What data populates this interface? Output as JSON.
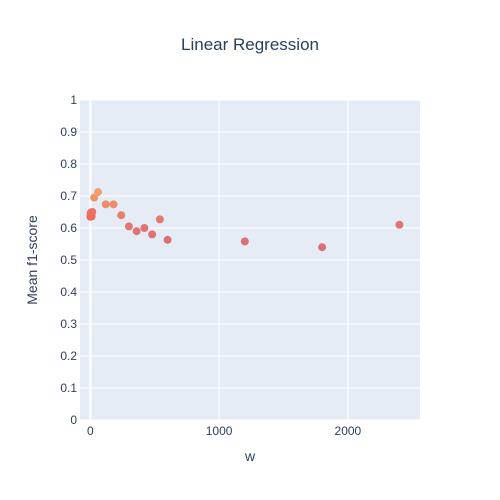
{
  "chart_data": {
    "type": "scatter",
    "title": "Linear Regression",
    "xlabel": "w",
    "ylabel": "Mean f1-score",
    "xlim": [
      -80,
      2560
    ],
    "ylim": [
      0,
      1
    ],
    "xticks": [
      0,
      1000,
      2000
    ],
    "xtick_labels": [
      "0",
      "1000",
      "2000"
    ],
    "yticks": [
      0,
      0.1,
      0.2,
      0.3,
      0.4,
      0.5,
      0.6,
      0.7,
      0.8,
      0.9,
      1
    ],
    "ytick_labels": [
      "0",
      "0.1",
      "0.2",
      "0.3",
      "0.4",
      "0.5",
      "0.6",
      "0.7",
      "0.8",
      "0.9",
      "1"
    ],
    "grid": true,
    "legend": "none",
    "plot_bg": "#e5ecf6",
    "grid_color": "#ffffff",
    "series": [
      {
        "points": [
          {
            "x": 1,
            "y": 0.635,
            "color": "#f06a5a"
          },
          {
            "x": 2,
            "y": 0.64,
            "color": "#f06a5a"
          },
          {
            "x": 3,
            "y": 0.645,
            "color": "#f06a5a"
          },
          {
            "x": 5,
            "y": 0.648,
            "color": "#f06a5a"
          },
          {
            "x": 8,
            "y": 0.643,
            "color": "#f06a5a"
          },
          {
            "x": 10,
            "y": 0.636,
            "color": "#f06a5a"
          },
          {
            "x": 15,
            "y": 0.65,
            "color": "#f07060"
          },
          {
            "x": 30,
            "y": 0.695,
            "color": "#f2946a"
          },
          {
            "x": 60,
            "y": 0.712,
            "color": "#f2a070"
          },
          {
            "x": 120,
            "y": 0.674,
            "color": "#ee8c6c"
          },
          {
            "x": 180,
            "y": 0.674,
            "color": "#ee8c6c"
          },
          {
            "x": 240,
            "y": 0.64,
            "color": "#e8806e"
          },
          {
            "x": 300,
            "y": 0.605,
            "color": "#e37672"
          },
          {
            "x": 360,
            "y": 0.59,
            "color": "#e07474"
          },
          {
            "x": 420,
            "y": 0.6,
            "color": "#e07474"
          },
          {
            "x": 480,
            "y": 0.58,
            "color": "#de7276"
          },
          {
            "x": 540,
            "y": 0.627,
            "color": "#e47a70"
          },
          {
            "x": 600,
            "y": 0.563,
            "color": "#dc7078"
          },
          {
            "x": 1200,
            "y": 0.558,
            "color": "#dc7078"
          },
          {
            "x": 1800,
            "y": 0.54,
            "color": "#d8707c"
          },
          {
            "x": 2400,
            "y": 0.61,
            "color": "#e07474"
          }
        ]
      }
    ]
  }
}
